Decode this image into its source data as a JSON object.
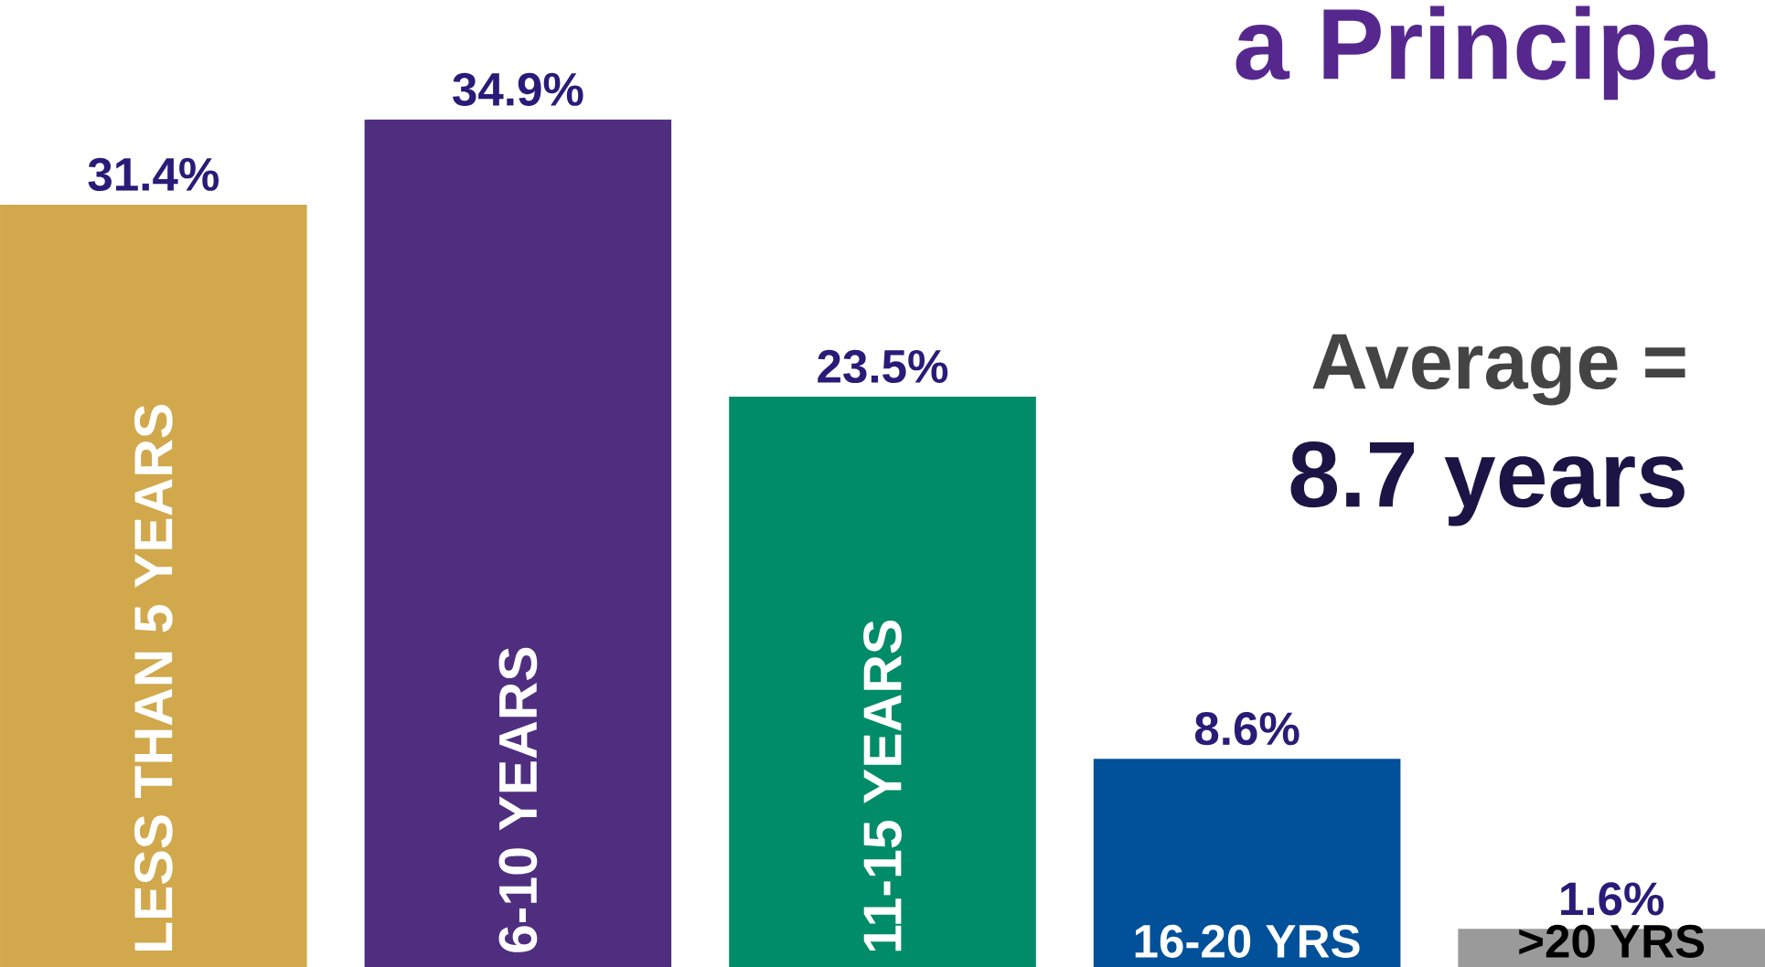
{
  "chart_data": {
    "type": "bar",
    "title": "a Principa",
    "categories": [
      "LESS THAN 5 YEARS",
      "6-10 YEARS",
      "11-15 YEARS",
      "16-20 YRS",
      ">20 YRS"
    ],
    "values": [
      31.4,
      34.9,
      23.5,
      8.6,
      1.6
    ],
    "value_labels": [
      "31.4%",
      "34.9%",
      "23.5%",
      "8.6%",
      "1.6%"
    ],
    "colors": [
      "#d1a84c",
      "#4f2e80",
      "#008c68",
      "#00519a",
      "#9a9a9a"
    ],
    "annotations": [
      "Average =",
      "8.7 years"
    ]
  }
}
